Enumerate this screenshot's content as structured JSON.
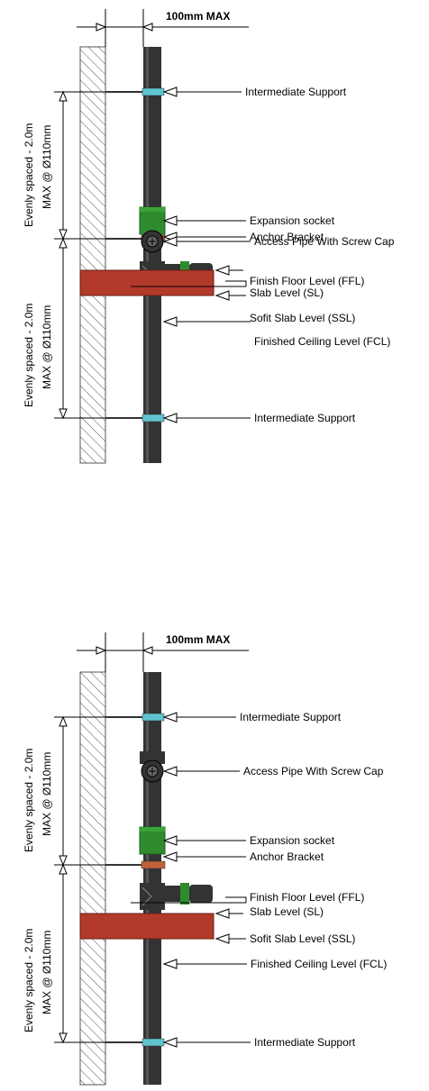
{
  "diagrams": [
    {
      "max_gap": "100mm MAX",
      "spacing_upper_line1": "Evenly spaced - 2.0m",
      "spacing_upper_line2": "MAX @ Ø110mm",
      "spacing_lower_line1": "Evenly spaced - 2.0m",
      "spacing_lower_line2": "MAX @ Ø110mm",
      "labels": {
        "intermediate_support_top": "Intermediate Support",
        "expansion_socket": "Expansion socket",
        "anchor_bracket": "Anchor Bracket",
        "access_pipe": "Access Pipe With Screw Cap",
        "ffl": "Finish Floor Level (FFL)",
        "sl": "Slab Level (SL)",
        "ssl": "Sofit Slab Level (SSL)",
        "fcl": "Finished Ceiling Level (FCL)",
        "intermediate_support_bottom": "Intermediate Support"
      }
    },
    {
      "max_gap": "100mm MAX",
      "spacing_upper_line1": "Evenly spaced - 2.0m",
      "spacing_upper_line2": "MAX @ Ø110mm",
      "spacing_lower_line1": "Evenly spaced - 2.0m",
      "spacing_lower_line2": "MAX @ Ø110mm",
      "labels": {
        "intermediate_support_top": "Intermediate Support",
        "access_pipe": "Access Pipe With Screw Cap",
        "expansion_socket": "Expansion socket",
        "anchor_bracket": "Anchor Bracket",
        "ffl": "Finish Floor Level (FFL)",
        "sl": "Slab Level (SL)",
        "ssl": "Sofit Slab Level (SSL)",
        "fcl": "Finished Ceiling Level (FCL)",
        "intermediate_support_bottom": "Intermediate Support"
      }
    }
  ],
  "colors": {
    "pipe": "#333333",
    "expansion_socket": "#2e8b2e",
    "slab": "#b23a2a",
    "support_clip": "#5fc4d0",
    "anchor_clip": "#c0603a"
  }
}
